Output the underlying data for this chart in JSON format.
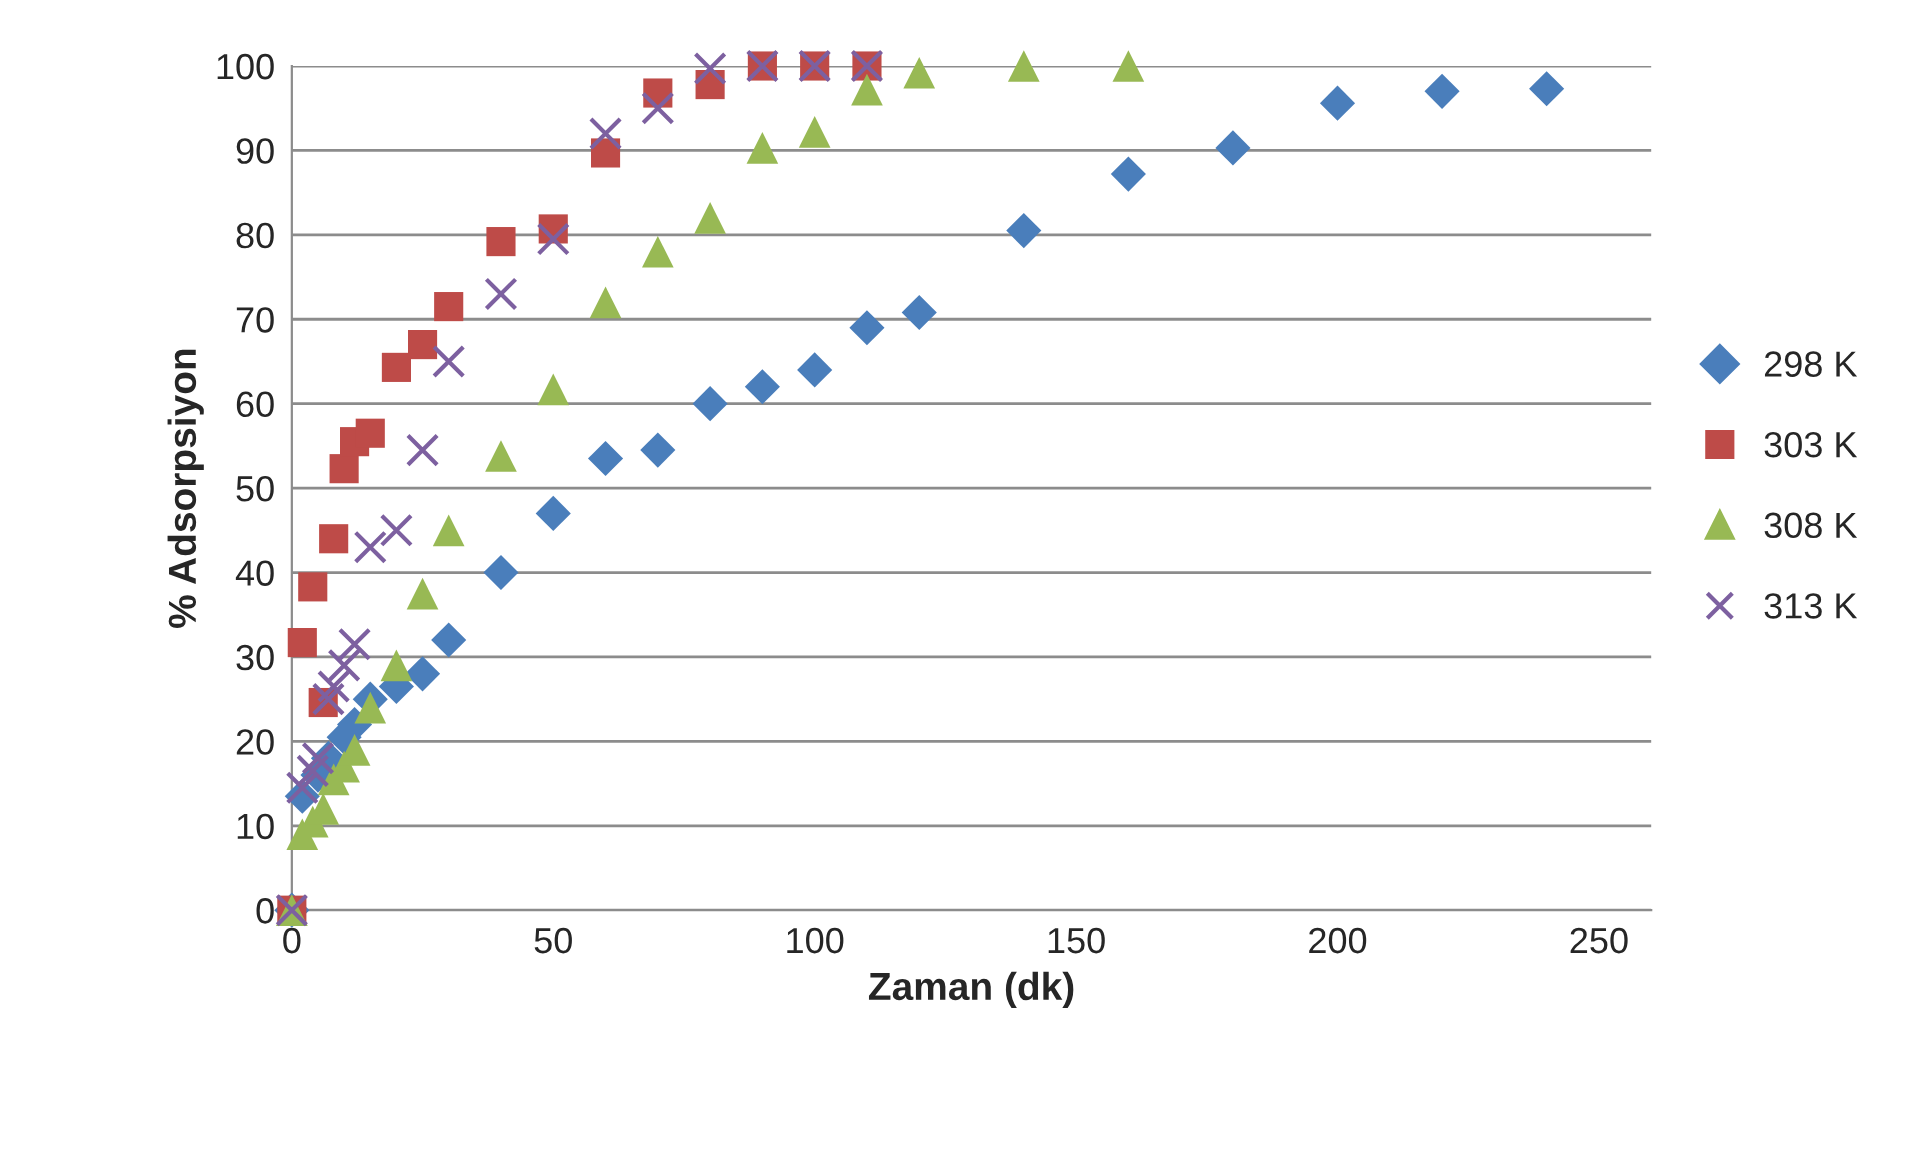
{
  "chart_data": {
    "type": "scatter",
    "xlabel": "Zaman (dk)",
    "ylabel": "% Adsorpsiyon",
    "xlim": [
      0,
      260
    ],
    "xticks": [
      0,
      50,
      100,
      150,
      200,
      250
    ],
    "ylim": [
      0,
      100
    ],
    "yticks": [
      0,
      10,
      20,
      30,
      40,
      50,
      60,
      70,
      80,
      90,
      100
    ],
    "grid": "y",
    "legend": "right",
    "series": [
      {
        "name": "298 K",
        "color": "#4a7ebb",
        "marker": "diamond",
        "x": [
          0,
          2,
          5,
          7,
          10,
          12,
          15,
          20,
          25,
          30,
          40,
          50,
          60,
          70,
          80,
          90,
          100,
          110,
          120,
          140,
          160,
          180,
          200,
          220,
          240
        ],
        "values": [
          0,
          13.5,
          16,
          18,
          20.5,
          22,
          25,
          26.5,
          28,
          32,
          40,
          47,
          53.5,
          54.5,
          60,
          62,
          64,
          69,
          70.8,
          80.5,
          87.2,
          90.3,
          95.6,
          97,
          97.3
        ]
      },
      {
        "name": "303 K",
        "color": "#be4b48",
        "marker": "square",
        "x": [
          0,
          2,
          4,
          6,
          8,
          10,
          12,
          15,
          20,
          25,
          30,
          40,
          50,
          60,
          70,
          80,
          90,
          100,
          110
        ],
        "values": [
          0,
          31.7,
          38.3,
          24.6,
          44,
          52.3,
          55.5,
          56.5,
          64.3,
          67,
          71.5,
          79.2,
          80.7,
          89.7,
          96.8,
          97.8,
          100,
          100,
          100
        ]
      },
      {
        "name": "308 K",
        "color": "#98b954",
        "marker": "triangle",
        "x": [
          0,
          2,
          4,
          6,
          8,
          10,
          12,
          15,
          20,
          25,
          30,
          40,
          50,
          60,
          70,
          80,
          90,
          100,
          110,
          120,
          140,
          160
        ],
        "values": [
          0,
          9,
          10.5,
          12,
          15.5,
          17,
          19,
          24,
          29,
          37.5,
          45,
          53.8,
          61.7,
          72,
          78,
          82,
          90.3,
          92.2,
          97.2,
          99.2,
          100,
          100
        ]
      },
      {
        "name": "313 K",
        "color": "#7d60a0",
        "marker": "cross",
        "x": [
          0,
          2,
          4,
          5,
          7,
          8,
          10,
          12,
          15,
          20,
          25,
          30,
          40,
          50,
          60,
          70,
          80,
          90,
          100,
          110
        ],
        "values": [
          0,
          14.5,
          16.5,
          18,
          25,
          26.5,
          29,
          31.5,
          43,
          45,
          54.5,
          65,
          73,
          79.5,
          92,
          95,
          99.7,
          100,
          100,
          100
        ]
      }
    ]
  }
}
